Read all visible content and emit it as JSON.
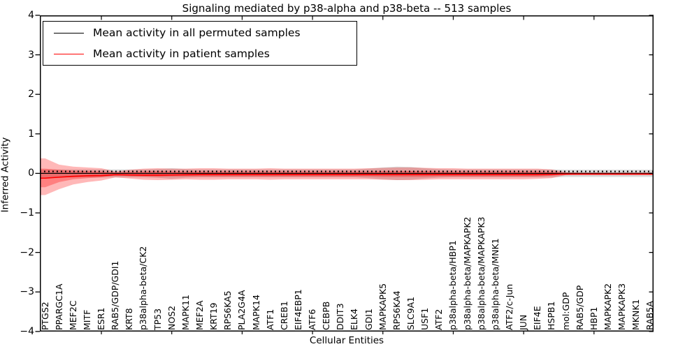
{
  "title": "Signaling mediated by p38-alpha and p38-beta -- 513 samples",
  "legend": {
    "items": [
      {
        "label": "Mean activity in all permuted samples",
        "color": "#000000"
      },
      {
        "label": "Mean activity in patient samples",
        "color": "#ff0000"
      }
    ]
  },
  "axes": {
    "y_label": "Inferred Activity",
    "x_label": "Cellular Entities",
    "y_ticks": [
      "4",
      "3",
      "2",
      "1",
      "0",
      "−1",
      "−2",
      "−3",
      "−4"
    ],
    "y_tick_values": [
      4,
      3,
      2,
      1,
      0,
      -1,
      -2,
      -3,
      -4
    ],
    "ylim": [
      -4,
      4
    ]
  },
  "chart_data": {
    "type": "line",
    "title": "Signaling mediated by p38-alpha and p38-beta -- 513 samples",
    "xlabel": "Cellular Entities",
    "ylabel": "Inferred Activity",
    "ylim": [
      -4,
      4
    ],
    "grid": false,
    "legend_position": "upper left",
    "zero_reference_line": true,
    "categories": [
      "PTGS2",
      "PPARGC1A",
      "MEF2C",
      "MITF",
      "ESR1",
      "RAB5/GDP/GDI1",
      "KRT8",
      "p38alpha-beta/CK2",
      "TP53",
      "NOS2",
      "MAPK11",
      "MEF2A",
      "KRT19",
      "RPS6KA5",
      "PLA2G4A",
      "MAPK14",
      "ATF1",
      "CREB1",
      "EIF4EBP1",
      "ATF6",
      "CEBPB",
      "DDIT3",
      "ELK4",
      "GDI1",
      "MAPKAPK5",
      "RPS6KA4",
      "SLC9A1",
      "USF1",
      "ATF2",
      "p38alpha-beta/HBP1",
      "p38alpha-beta/MAPKAPK2",
      "p38alpha-beta/MAPKAPK3",
      "p38alpha-beta/MNK1",
      "ATF2/c-Jun",
      "JUN",
      "EIF4E",
      "HSPB1",
      "mol:GDP",
      "RAB5/GDP",
      "HBP1",
      "MAPKAPK2",
      "MAPKAPK3",
      "MKNK1",
      "RAB5A"
    ],
    "series": [
      {
        "name": "Mean activity in all permuted samples",
        "color": "#000000",
        "style": "dotted",
        "values": [
          0.05,
          0.05,
          0.05,
          0.05,
          0.05,
          0.05,
          0.05,
          0.05,
          0.05,
          0.05,
          0.05,
          0.05,
          0.05,
          0.05,
          0.05,
          0.05,
          0.05,
          0.05,
          0.05,
          0.05,
          0.05,
          0.05,
          0.05,
          0.05,
          0.05,
          0.05,
          0.05,
          0.05,
          0.05,
          0.05,
          0.05,
          0.05,
          0.05,
          0.05,
          0.05,
          0.05,
          0.05,
          0.05,
          0.05,
          0.05,
          0.05,
          0.05,
          0.05,
          0.05
        ]
      },
      {
        "name": "Mean activity in patient samples",
        "color": "#ff0000",
        "style": "solid",
        "values": [
          -0.12,
          -0.095,
          -0.075,
          -0.06,
          -0.055,
          -0.035,
          -0.04,
          -0.045,
          -0.045,
          -0.04,
          -0.035,
          -0.03,
          -0.03,
          -0.03,
          -0.03,
          -0.03,
          -0.03,
          -0.03,
          -0.03,
          -0.03,
          -0.03,
          -0.03,
          -0.03,
          -0.03,
          -0.03,
          -0.03,
          -0.03,
          -0.03,
          -0.03,
          -0.03,
          -0.03,
          -0.03,
          -0.03,
          -0.03,
          -0.03,
          -0.03,
          -0.025,
          -0.02,
          -0.02,
          -0.02,
          -0.02,
          -0.02,
          -0.02,
          -0.02
        ]
      }
    ],
    "bands": [
      {
        "name": "permuted-samples-band",
        "color": "rgba(0,0,0,0.15)",
        "upper": [
          0.1,
          0.1,
          0.1,
          0.1,
          0.1,
          0.1,
          0.1,
          0.1,
          0.11,
          0.13,
          0.11,
          0.1,
          0.1,
          0.1,
          0.1,
          0.1,
          0.1,
          0.1,
          0.1,
          0.1,
          0.1,
          0.1,
          0.1,
          0.12,
          0.15,
          0.17,
          0.16,
          0.13,
          0.11,
          0.1,
          0.1,
          0.1,
          0.1,
          0.1,
          0.1,
          0.1,
          0.1,
          0.09,
          0.09,
          0.09,
          0.09,
          0.09,
          0.09,
          0.09
        ],
        "lower": [
          -0.1,
          -0.1,
          -0.1,
          -0.1,
          -0.1,
          -0.1,
          -0.1,
          -0.1,
          -0.11,
          -0.14,
          -0.11,
          -0.1,
          -0.1,
          -0.1,
          -0.1,
          -0.1,
          -0.1,
          -0.1,
          -0.1,
          -0.1,
          -0.1,
          -0.1,
          -0.1,
          -0.12,
          -0.15,
          -0.17,
          -0.16,
          -0.13,
          -0.11,
          -0.1,
          -0.1,
          -0.1,
          -0.1,
          -0.1,
          -0.1,
          -0.1,
          -0.1,
          -0.09,
          -0.09,
          -0.09,
          -0.09,
          -0.09,
          -0.09,
          -0.09
        ]
      },
      {
        "name": "patient-band-outer",
        "color": "rgba(255,0,0,0.28)",
        "upper": [
          0.38,
          0.22,
          0.17,
          0.15,
          0.13,
          0.05,
          0.09,
          0.12,
          0.13,
          0.12,
          0.12,
          0.13,
          0.13,
          0.12,
          0.12,
          0.12,
          0.13,
          0.12,
          0.12,
          0.12,
          0.12,
          0.12,
          0.12,
          0.13,
          0.14,
          0.15,
          0.15,
          0.14,
          0.13,
          0.13,
          0.12,
          0.12,
          0.12,
          0.12,
          0.12,
          0.12,
          0.1,
          0.03,
          0.02,
          0.02,
          0.02,
          0.02,
          0.02,
          0.02
        ],
        "lower": [
          -0.55,
          -0.4,
          -0.28,
          -0.22,
          -0.18,
          -0.1,
          -0.13,
          -0.16,
          -0.17,
          -0.16,
          -0.15,
          -0.16,
          -0.16,
          -0.15,
          -0.15,
          -0.15,
          -0.16,
          -0.15,
          -0.15,
          -0.15,
          -0.15,
          -0.15,
          -0.15,
          -0.15,
          -0.16,
          -0.17,
          -0.17,
          -0.16,
          -0.15,
          -0.15,
          -0.15,
          -0.15,
          -0.15,
          -0.15,
          -0.15,
          -0.14,
          -0.12,
          -0.04,
          -0.03,
          -0.03,
          -0.03,
          -0.03,
          -0.03,
          -0.03
        ]
      },
      {
        "name": "patient-band-inner",
        "color": "rgba(255,0,0,0.30)",
        "upper": [
          0.12,
          0.09,
          0.07,
          0.06,
          0.05,
          0.02,
          0.04,
          0.05,
          0.06,
          0.05,
          0.05,
          0.05,
          0.05,
          0.05,
          0.05,
          0.05,
          0.05,
          0.05,
          0.05,
          0.05,
          0.05,
          0.05,
          0.05,
          0.05,
          0.06,
          0.06,
          0.06,
          0.06,
          0.05,
          0.05,
          0.05,
          0.05,
          0.05,
          0.05,
          0.05,
          0.05,
          0.04,
          0.01,
          0.01,
          0.01,
          0.01,
          0.01,
          0.01,
          0.01
        ],
        "lower": [
          -0.35,
          -0.22,
          -0.15,
          -0.12,
          -0.1,
          -0.05,
          -0.07,
          -0.08,
          -0.09,
          -0.08,
          -0.08,
          -0.08,
          -0.08,
          -0.08,
          -0.08,
          -0.08,
          -0.08,
          -0.08,
          -0.08,
          -0.08,
          -0.08,
          -0.08,
          -0.08,
          -0.08,
          -0.09,
          -0.09,
          -0.09,
          -0.09,
          -0.08,
          -0.08,
          -0.08,
          -0.08,
          -0.08,
          -0.08,
          -0.08,
          -0.08,
          -0.06,
          -0.02,
          -0.02,
          -0.02,
          -0.02,
          -0.02,
          -0.02,
          -0.02
        ]
      }
    ]
  }
}
